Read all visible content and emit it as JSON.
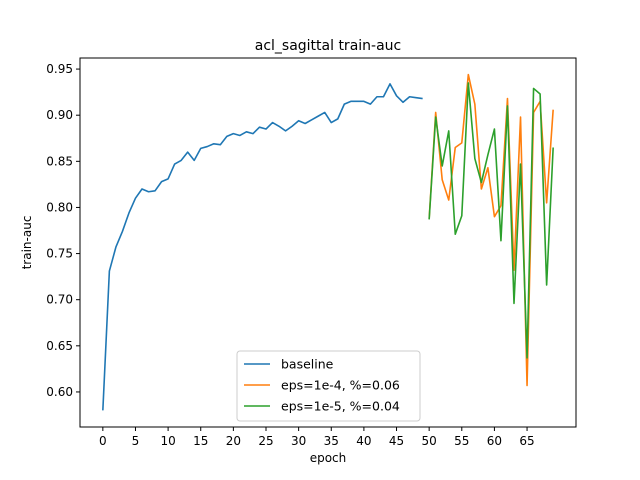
{
  "chart_data": {
    "type": "line",
    "title": "acl_sagittal train-auc",
    "xlabel": "epoch",
    "ylabel": "train-auc",
    "xlim": [
      -3.5,
      72.5
    ],
    "ylim": [
      0.562,
      0.962
    ],
    "xticks": [
      0,
      5,
      10,
      15,
      20,
      25,
      30,
      35,
      40,
      45,
      50,
      55,
      60,
      65
    ],
    "yticks": [
      0.6,
      0.65,
      0.7,
      0.75,
      0.8,
      0.85,
      0.9,
      0.95
    ],
    "grid": false,
    "legend_position": "lower-center",
    "series": [
      {
        "name": "baseline",
        "color": "#1f77b4",
        "x": [
          0,
          1,
          2,
          3,
          4,
          5,
          6,
          7,
          8,
          9,
          10,
          11,
          12,
          13,
          14,
          15,
          16,
          17,
          18,
          19,
          20,
          21,
          22,
          23,
          24,
          25,
          26,
          27,
          28,
          29,
          30,
          31,
          32,
          33,
          34,
          35,
          36,
          37,
          38,
          39,
          40,
          41,
          42,
          43,
          44,
          45,
          46,
          47,
          48,
          49
        ],
        "y": [
          0.58,
          0.731,
          0.757,
          0.774,
          0.794,
          0.81,
          0.82,
          0.817,
          0.818,
          0.828,
          0.831,
          0.847,
          0.851,
          0.86,
          0.851,
          0.864,
          0.866,
          0.869,
          0.868,
          0.877,
          0.88,
          0.878,
          0.882,
          0.88,
          0.887,
          0.885,
          0.892,
          0.888,
          0.883,
          0.888,
          0.894,
          0.891,
          0.895,
          0.899,
          0.903,
          0.892,
          0.896,
          0.912,
          0.915,
          0.915,
          0.915,
          0.912,
          0.92,
          0.92,
          0.934,
          0.921,
          0.914,
          0.92,
          0.919,
          0.918
        ]
      },
      {
        "name": "eps=1e-4, %=0.06",
        "color": "#ff7f0e",
        "x": [
          50,
          51,
          52,
          53,
          54,
          55,
          56,
          57,
          58,
          59,
          60,
          61,
          62,
          63,
          64,
          65,
          66,
          67,
          68,
          69
        ],
        "y": [
          0.788,
          0.903,
          0.83,
          0.808,
          0.865,
          0.87,
          0.944,
          0.912,
          0.82,
          0.843,
          0.79,
          0.802,
          0.918,
          0.732,
          0.898,
          0.607,
          0.903,
          0.915,
          0.805,
          0.906
        ]
      },
      {
        "name": "eps=1e-5, %=0.04",
        "color": "#2ca02c",
        "x": [
          50,
          51,
          52,
          53,
          54,
          55,
          56,
          57,
          58,
          59,
          60,
          61,
          62,
          63,
          64,
          65,
          66,
          67,
          68,
          69
        ],
        "y": [
          0.787,
          0.898,
          0.845,
          0.883,
          0.771,
          0.791,
          0.935,
          0.853,
          0.827,
          0.857,
          0.885,
          0.764,
          0.91,
          0.696,
          0.847,
          0.637,
          0.929,
          0.923,
          0.716,
          0.865
        ]
      }
    ]
  }
}
